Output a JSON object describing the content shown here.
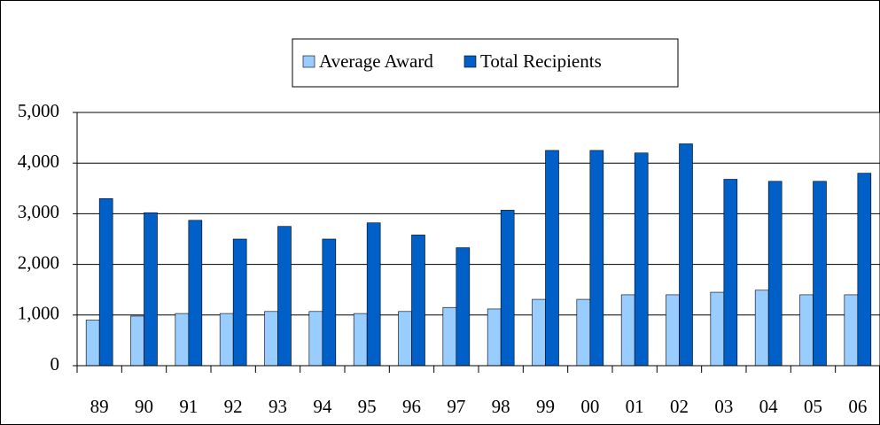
{
  "chart_data": {
    "type": "bar",
    "categories": [
      "89",
      "90",
      "91",
      "92",
      "93",
      "94",
      "95",
      "96",
      "97",
      "98",
      "99",
      "00",
      "01",
      "02",
      "03",
      "04",
      "05",
      "06"
    ],
    "series": [
      {
        "name": "Average Award",
        "color": "#99ccff",
        "values": [
          900,
          980,
          1030,
          1030,
          1070,
          1070,
          1030,
          1070,
          1150,
          1120,
          1310,
          1310,
          1400,
          1400,
          1450,
          1490,
          1400,
          1400
        ]
      },
      {
        "name": "Total Recipients",
        "color": "#0060c8",
        "values": [
          3300,
          3020,
          2870,
          2500,
          2750,
          2500,
          2820,
          2580,
          2330,
          3070,
          4250,
          4250,
          4200,
          4380,
          3680,
          3640,
          3640,
          3800
        ]
      }
    ],
    "ylim": [
      0,
      5000
    ],
    "yticks": [
      0,
      {
        "value": 1000,
        "label": "1,000"
      },
      {
        "value": 2000,
        "label": "2,000"
      },
      {
        "value": 3000,
        "label": "3,000"
      },
      {
        "value": 4000,
        "label": "4,000"
      },
      {
        "value": 5000,
        "label": "5,000"
      }
    ],
    "grid": true,
    "legend": "top"
  }
}
